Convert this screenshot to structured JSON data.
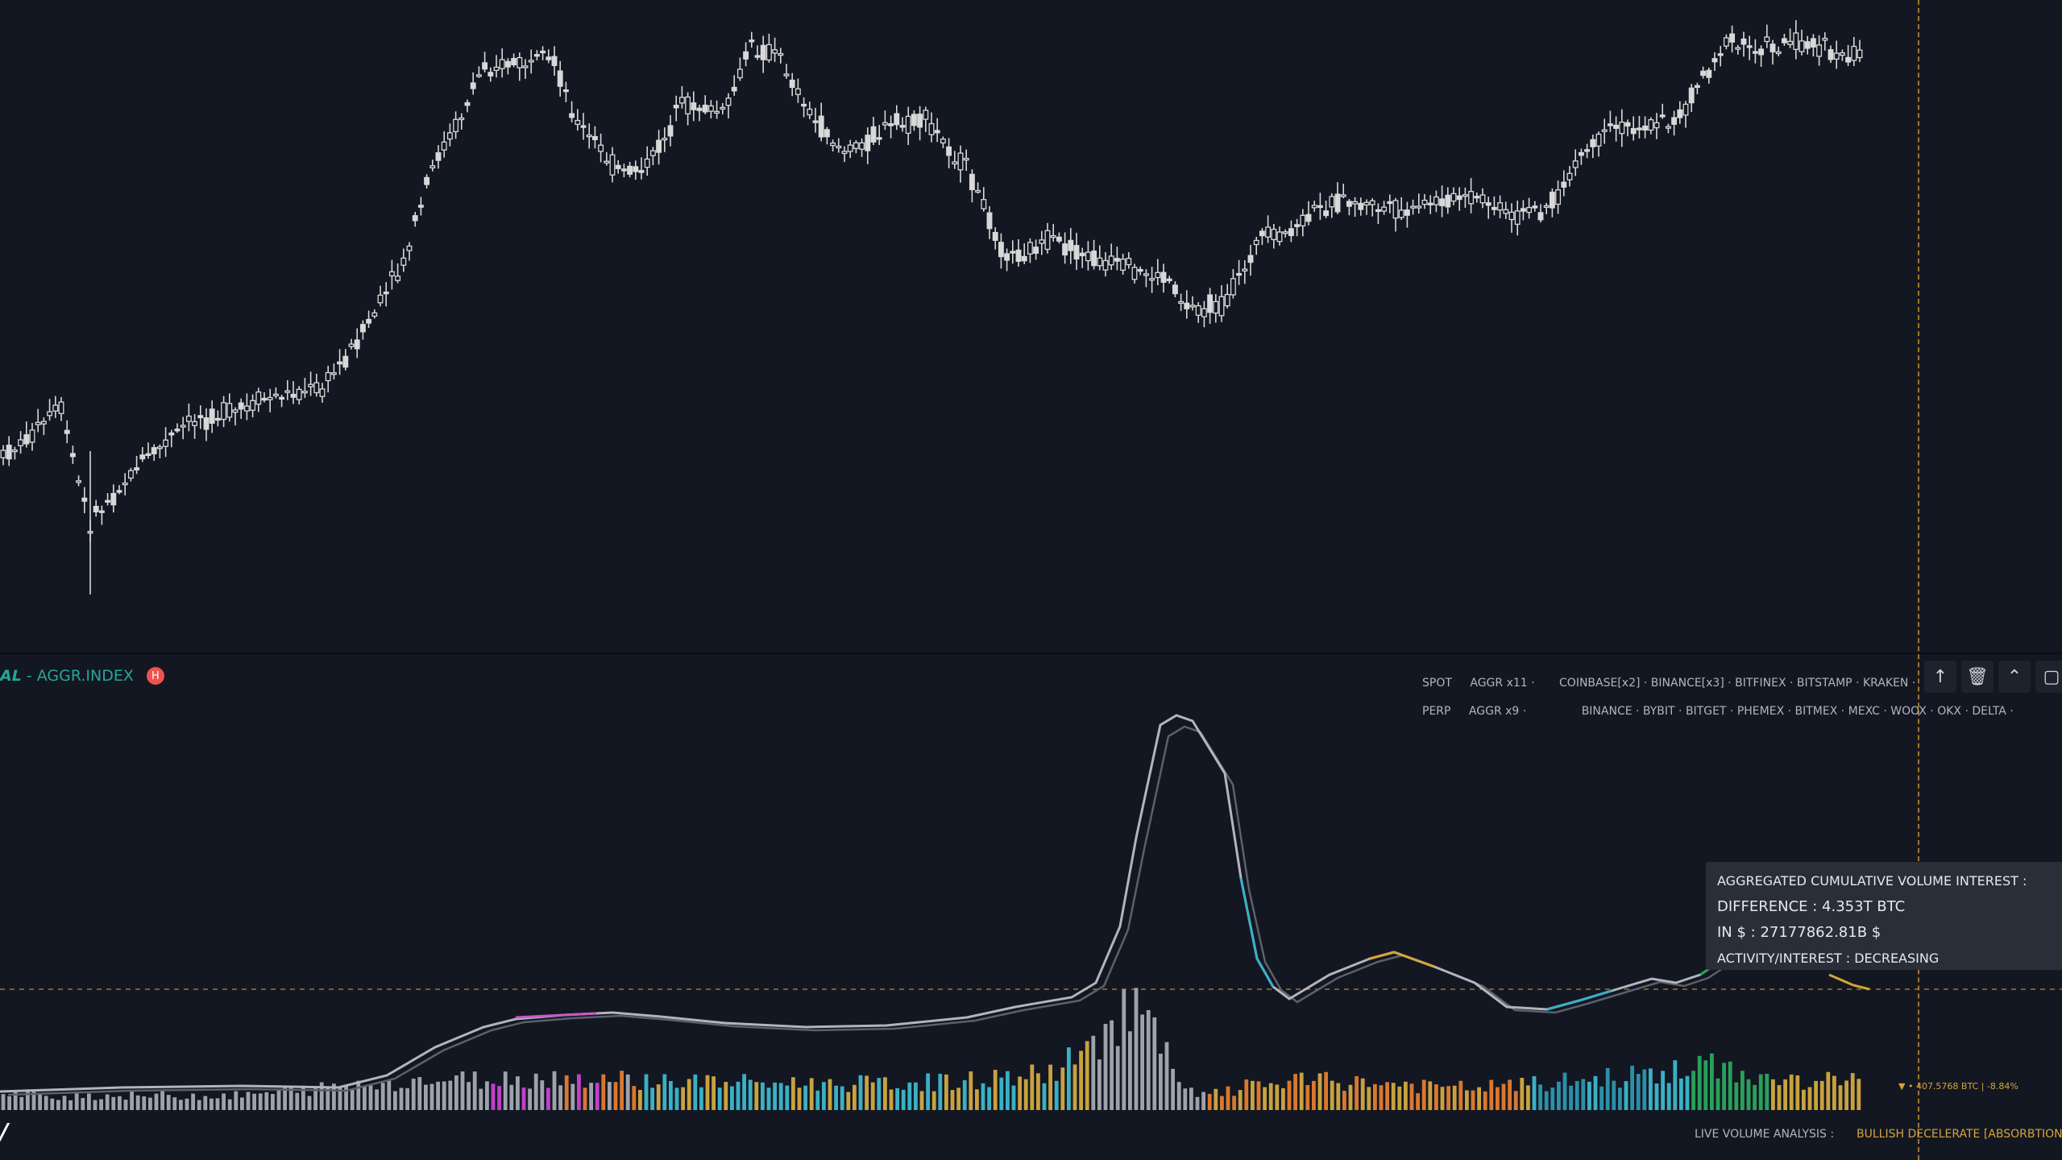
{
  "indicator": {
    "prefix": "AL",
    "name": "- AGGR.INDEX",
    "badge": "H"
  },
  "sources": {
    "spot": {
      "label": "SPOT",
      "aggr": "AGGR x11 ·",
      "exchanges": "COINBASE[x2] · BINANCE[x3] · BITFINEX · BITSTAMP · KRAKEN ·"
    },
    "perp": {
      "label": "PERP",
      "aggr": "AGGR x9 ·",
      "exchanges": "BINANCE · BYBIT · BITGET · PHEMEX · BITMEX · MEXC · WOOX · OKX · DELTA ·"
    }
  },
  "toolbar": [
    {
      "name": "move-up-icon",
      "glyph": "↑"
    },
    {
      "name": "trash-icon",
      "glyph": "🗑"
    },
    {
      "name": "collapse-icon",
      "glyph": "⌃"
    },
    {
      "name": "more-icon",
      "glyph": "▢"
    }
  ],
  "tooltip": {
    "title": "AGGREGATED CUMULATIVE VOLUME INTEREST :",
    "difference": "DIFFERENCE : 4.353T BTC",
    "in_usd": "IN $ : 27177862.81B $",
    "activity": "ACTIVITY/INTEREST : DECREASING"
  },
  "volume_readout": "▼   • 407.5768 BTC | -8.84%",
  "footer": {
    "analysis_label": "LIVE VOLUME ANALYSIS :",
    "analysis_value": "BULLISH DECELERATE [ABSORBTION]"
  },
  "logo": "/",
  "colors": {
    "background": "#131722",
    "candle": "#d8d8d8",
    "accent_teal": "#26a69a",
    "crosshair": "#b8872e",
    "orange": "#d4a53a"
  }
}
